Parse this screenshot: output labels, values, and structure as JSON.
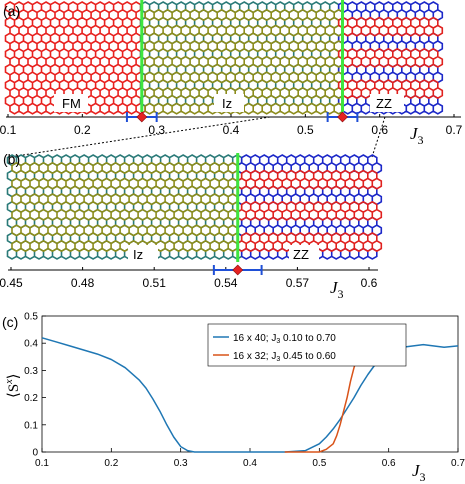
{
  "colors": {
    "fm_bond": "#e8211e",
    "iz_bond_a": "#8c8c1c",
    "iz_bond_b": "#2a7a78",
    "zz_bond_red": "#e0211e",
    "zz_bond_blue": "#1b27c8",
    "boundary": "#3ee63e",
    "marker": "#e52222",
    "errorbar": "#1f4fd6",
    "series1": "#1f77b4",
    "series2": "#d95319"
  },
  "panel_a": {
    "label": "(a)",
    "phase_labels": [
      "FM",
      "Iz",
      "ZZ"
    ],
    "axis_ticks": [
      "0.1",
      "0.2",
      "0.3",
      "0.4",
      "0.5",
      "0.6",
      "0.7"
    ],
    "axis_label": "J",
    "axis_label_sub": "3",
    "x_range": [
      0.1,
      0.7
    ],
    "boundaries": [
      0.28,
      0.55
    ],
    "transition_points": [
      {
        "x": 0.28,
        "err_low": 0.26,
        "err_high": 0.3
      },
      {
        "x": 0.55,
        "err_low": 0.53,
        "err_high": 0.57
      }
    ]
  },
  "panel_b": {
    "label": "(b)",
    "phase_labels": [
      "Iz",
      "ZZ"
    ],
    "axis_ticks": [
      "0.45",
      "0.48",
      "0.51",
      "0.54",
      "0.57",
      "0.6"
    ],
    "axis_label": "J",
    "axis_label_sub": "3",
    "x_range": [
      0.45,
      0.6
    ],
    "boundaries": [
      0.545
    ],
    "transition_points": [
      {
        "x": 0.545,
        "err_low": 0.535,
        "err_high": 0.555
      }
    ]
  },
  "chart_data": {
    "type": "line",
    "panel_label": "(c)",
    "xlabel": "J",
    "xlabel_sub": "3",
    "ylabel": "⟨S",
    "ylabel_sup": "x",
    "ylabel_end": "⟩",
    "xlim": [
      0.1,
      0.7
    ],
    "ylim": [
      0,
      0.5
    ],
    "xticks": [
      "0.1",
      "0.2",
      "0.3",
      "0.4",
      "0.5",
      "0.6",
      "0.7"
    ],
    "yticks": [
      "0",
      "0.1",
      "0.2",
      "0.3",
      "0.4",
      "0.5"
    ],
    "legend_position": "top-right",
    "series": [
      {
        "name": "16 x 40; J",
        "name_sub": "3",
        "name_rest": " 0.10 to 0.70",
        "x": [
          0.1,
          0.12,
          0.14,
          0.16,
          0.18,
          0.2,
          0.22,
          0.24,
          0.25,
          0.26,
          0.27,
          0.28,
          0.29,
          0.3,
          0.31,
          0.32,
          0.35,
          0.4,
          0.45,
          0.48,
          0.5,
          0.51,
          0.52,
          0.53,
          0.54,
          0.55,
          0.56,
          0.57,
          0.58,
          0.6,
          0.62,
          0.65,
          0.68,
          0.7
        ],
        "y": [
          0.42,
          0.405,
          0.39,
          0.375,
          0.36,
          0.34,
          0.31,
          0.265,
          0.235,
          0.195,
          0.15,
          0.1,
          0.055,
          0.02,
          0.005,
          0.0,
          0.0,
          0.0,
          0.0,
          0.005,
          0.03,
          0.055,
          0.085,
          0.12,
          0.16,
          0.2,
          0.245,
          0.285,
          0.32,
          0.365,
          0.385,
          0.395,
          0.385,
          0.39
        ]
      },
      {
        "name": "16 x 32; J",
        "name_sub": "3",
        "name_rest": " 0.45 to 0.60",
        "x": [
          0.45,
          0.48,
          0.5,
          0.51,
          0.52,
          0.525,
          0.53,
          0.535,
          0.54,
          0.545,
          0.55,
          0.555,
          0.56,
          0.565,
          0.57,
          0.58,
          0.59,
          0.6
        ],
        "y": [
          0.0,
          0.0,
          0.0,
          0.01,
          0.03,
          0.06,
          0.1,
          0.15,
          0.2,
          0.26,
          0.31,
          0.35,
          0.375,
          0.385,
          0.39,
          0.39,
          0.39,
          0.38
        ]
      }
    ]
  }
}
